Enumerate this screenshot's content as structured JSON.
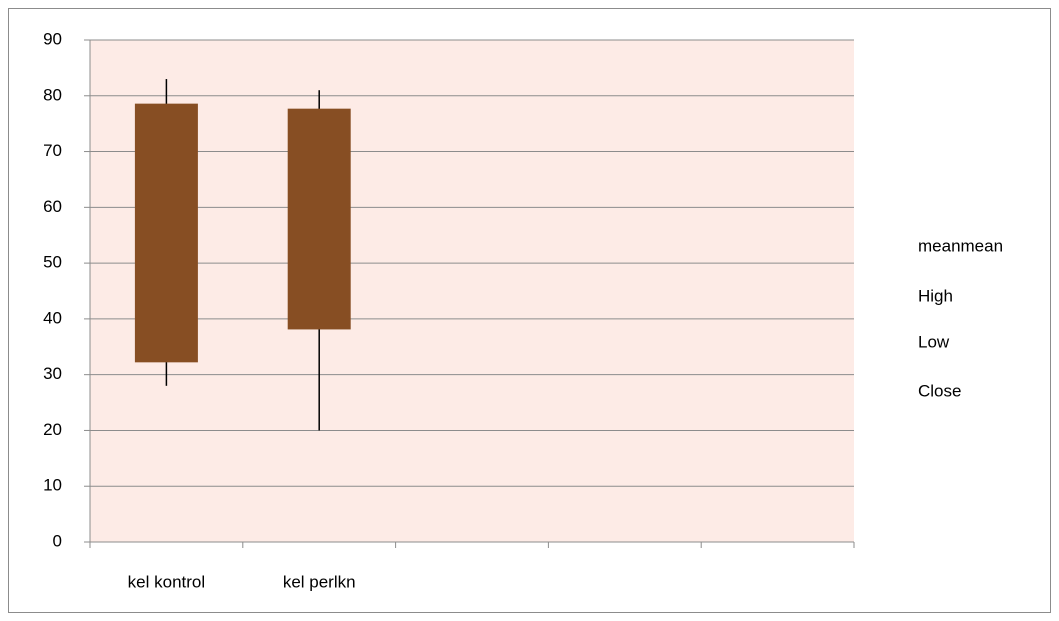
{
  "chart_data": {
    "type": "candlestick",
    "categories": [
      "kel kontrol",
      "kel perlkn",
      null,
      null,
      null
    ],
    "series": [
      {
        "name": "meanmean",
        "color": "#874e23",
        "values": [
          78.5,
          77.6,
          null,
          null,
          null
        ]
      },
      {
        "name": "High",
        "color": "#000000",
        "values": [
          83,
          81,
          null,
          null,
          null
        ]
      },
      {
        "name": "Low",
        "color": "#000000",
        "values": [
          28,
          20,
          null,
          null,
          null
        ]
      },
      {
        "name": "Close",
        "color": "#874e23",
        "values": [
          32.3,
          38.2,
          null,
          null,
          null
        ]
      }
    ],
    "ylim": [
      0,
      90
    ],
    "yticks": [
      0,
      10,
      20,
      30,
      40,
      50,
      60,
      70,
      80,
      90
    ],
    "grid": true,
    "legend": "right"
  }
}
